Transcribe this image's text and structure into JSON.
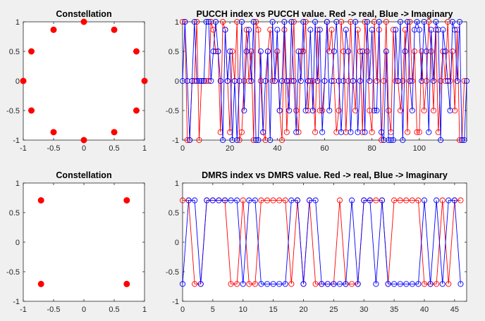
{
  "colors": {
    "real": "#ff0000",
    "imag": "#0000ff",
    "background": "#f0f0f0"
  },
  "chart_data": [
    {
      "id": "const1",
      "type": "scatter",
      "title": "Constellation",
      "xlim": [
        -1,
        1
      ],
      "ylim": [
        -1,
        1
      ],
      "xticks": [
        -1,
        -0.5,
        0,
        0.5,
        1
      ],
      "yticks": [
        -1,
        -0.5,
        0,
        0.5,
        1
      ],
      "grid": false,
      "series": [
        {
          "color": "#ff0000",
          "points": [
            [
              1,
              0
            ],
            [
              0.866,
              0.5
            ],
            [
              0.5,
              0.866
            ],
            [
              0,
              1
            ],
            [
              -0.5,
              0.866
            ],
            [
              -0.866,
              0.5
            ],
            [
              -1,
              0
            ],
            [
              -0.866,
              -0.5
            ],
            [
              -0.5,
              -0.866
            ],
            [
              0,
              -1
            ],
            [
              0.5,
              -0.866
            ],
            [
              0.866,
              -0.5
            ]
          ]
        }
      ]
    },
    {
      "id": "pucch",
      "type": "line",
      "title": "PUCCH index vs PUCCH value. Red -> real, Blue -> Imaginary",
      "xlim": [
        0,
        120
      ],
      "ylim": [
        -1,
        1
      ],
      "xticks": [
        0,
        20,
        40,
        60,
        80,
        100
      ],
      "yticks": [
        -1,
        -0.5,
        0,
        0.5,
        1
      ],
      "grid": false,
      "marker": "circle-open",
      "series": [
        {
          "color": "#ff0000",
          "values": [
            1,
            1,
            -1,
            -1,
            0,
            0,
            1,
            -1,
            0,
            0,
            0,
            0,
            1,
            0.866,
            0.5,
            0.5,
            -0.866,
            1,
            0.866,
            0,
            -0.866,
            0.5,
            0,
            1,
            -1,
            -0.866,
            0,
            0.866,
            0,
            0.5,
            -1,
            1,
            0.866,
            0,
            -0.866,
            -1,
            0.5,
            0.866,
            0,
            0,
            0.5,
            -0.5,
            -1,
            0.866,
            -0.866,
            0,
            0,
            1,
            -0.5,
            -0.866,
            0.5,
            0.5,
            1,
            -0.5,
            0,
            0,
            -0.866,
            0.866,
            -0.5,
            -0.5,
            0,
            1,
            0.5,
            0.866,
            0,
            -0.866,
            -0.5,
            1,
            0.5,
            -0.866,
            0,
            1,
            0,
            -0.5,
            0.866,
            0.5,
            -0.866,
            1,
            0.5,
            -0.5,
            -0.866,
            1,
            0,
            0.866,
            -1,
            0,
            1,
            -0.5,
            -0.866,
            0.866,
            0,
            0,
            -0.5,
            0,
            0.866,
            -0.866,
            1,
            0,
            0.5,
            -0.866,
            -0.866,
            0.5,
            -0.5,
            0,
            1,
            0.5,
            -0.5,
            0.866,
            -0.866,
            0,
            0.5,
            0,
            1,
            0,
            0.5,
            -0.5,
            0.866,
            -1,
            -1,
            0
          ]
        },
        {
          "color": "#0000ff",
          "values": [
            0,
            1,
            0,
            -1,
            0,
            1,
            0,
            0,
            0,
            0,
            1,
            1,
            0,
            0.5,
            1,
            0.5,
            0,
            -1,
            0.866,
            0,
            0.5,
            -1,
            0,
            -1,
            0,
            1,
            -0.5,
            0.5,
            0.866,
            0,
            1,
            -1,
            -1,
            0.5,
            -0.866,
            0,
            0.5,
            -1,
            1,
            0,
            0.866,
            -0.5,
            0,
            1,
            0,
            -0.5,
            1,
            0,
            -0.866,
            0.5,
            0,
            1,
            -0.5,
            0,
            0.866,
            -0.5,
            1,
            0,
            0.866,
            -0.866,
            0,
            1,
            -0.5,
            0,
            0.5,
            1,
            0,
            -0.866,
            0,
            0.866,
            0.5,
            -0.866,
            0,
            1,
            -0.866,
            0,
            0.5,
            -0.866,
            1,
            0,
            0.866,
            -0.5,
            -0.5,
            1,
            -0.866,
            -1,
            0.5,
            -1,
            -1,
            -1,
            0.866,
            0,
            1,
            -1,
            0.5,
            1,
            0,
            -0.5,
            0.866,
            1,
            0.866,
            0,
            1,
            0.5,
            -0.866,
            0.866,
            0,
            1,
            0.866,
            -1,
            0.866,
            0.5,
            0,
            -0.5,
            1,
            0.866,
            0,
            1,
            -1,
            -1,
            0
          ]
        }
      ]
    },
    {
      "id": "const2",
      "type": "scatter",
      "title": "Constellation",
      "xlim": [
        -1,
        1
      ],
      "ylim": [
        -1,
        1
      ],
      "xticks": [
        -1,
        -0.5,
        0,
        0.5,
        1
      ],
      "yticks": [
        -1,
        -0.5,
        0,
        0.5,
        1
      ],
      "grid": false,
      "series": [
        {
          "color": "#ff0000",
          "points": [
            [
              -0.707,
              0.707
            ],
            [
              0.707,
              0.707
            ],
            [
              -0.707,
              -0.707
            ],
            [
              0.707,
              -0.707
            ]
          ]
        }
      ]
    },
    {
      "id": "dmrs",
      "type": "line",
      "title": "DMRS index vs DMRS value. Red -> real, Blue -> Imaginary",
      "xlim": [
        0,
        47
      ],
      "ylim": [
        -1,
        1
      ],
      "xticks": [
        0,
        5,
        10,
        15,
        20,
        25,
        30,
        35,
        40,
        45
      ],
      "yticks": [
        -1,
        -0.5,
        0,
        0.5,
        1
      ],
      "grid": false,
      "marker": "circle-open",
      "series": [
        {
          "color": "#ff0000",
          "values": [
            0.707,
            0.707,
            -0.707,
            -0.707,
            0.707,
            0.707,
            0.707,
            0.707,
            -0.707,
            -0.707,
            0.707,
            -0.707,
            -0.707,
            0.707,
            0.707,
            0.707,
            0.707,
            0.707,
            -0.707,
            0.707,
            -0.707,
            0.707,
            -0.707,
            -0.707,
            -0.707,
            -0.707,
            0.707,
            -0.707,
            -0.707,
            -0.707,
            0.707,
            0.707,
            0.707,
            0.707,
            -0.707,
            0.707,
            0.707,
            0.707,
            0.707,
            0.707,
            -0.707,
            -0.707,
            -0.707,
            0.707,
            -0.707,
            0.707,
            0.707
          ]
        },
        {
          "color": "#0000ff",
          "values": [
            -0.707,
            0.707,
            0.707,
            -0.707,
            0.707,
            0.707,
            0.707,
            0.707,
            0.707,
            0.707,
            -0.707,
            0.707,
            0.707,
            -0.707,
            -0.707,
            -0.707,
            -0.707,
            -0.707,
            0.707,
            0.707,
            -0.707,
            0.707,
            0.707,
            -0.707,
            -0.707,
            -0.707,
            -0.707,
            -0.707,
            0.707,
            -0.707,
            0.707,
            0.707,
            -0.707,
            0.707,
            -0.707,
            -0.707,
            -0.707,
            -0.707,
            -0.707,
            -0.707,
            0.707,
            -0.707,
            0.707,
            -0.707,
            0.707,
            0.707,
            -0.707
          ]
        }
      ]
    }
  ]
}
